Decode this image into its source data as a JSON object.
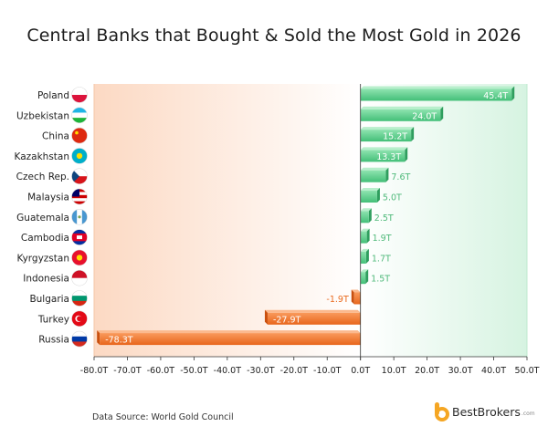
{
  "title": "Central Banks that Bought & Sold the Most Gold in 2026",
  "source": "Data Source: World Gold Council",
  "brand": {
    "name": "BestBrokers",
    "suffix": ".com"
  },
  "colors": {
    "positive": "#5ccf8c",
    "negative": "#f27a2d"
  },
  "chart_data": {
    "type": "bar",
    "orientation": "horizontal",
    "title": "Central Banks that Bought & Sold the Most Gold in 2026",
    "categories": [
      "Poland",
      "Uzbekistan",
      "China",
      "Kazakhstan",
      "Czech Rep.",
      "Malaysia",
      "Guatemala",
      "Cambodia",
      "Kyrgyzstan",
      "Indonesia",
      "Bulgaria",
      "Turkey",
      "Russia"
    ],
    "values": [
      45.4,
      24.0,
      15.2,
      13.3,
      7.6,
      5.0,
      2.5,
      1.9,
      1.7,
      1.5,
      -1.9,
      -27.9,
      -78.3
    ],
    "value_labels": [
      "45.4T",
      "24.0T",
      "15.2T",
      "13.3T",
      "7.6T",
      "5.0T",
      "2.5T",
      "1.9T",
      "1.7T",
      "1.5T",
      "-1.9T",
      "-27.9T",
      "-78.3T"
    ],
    "xlim": [
      -80,
      50
    ],
    "x_ticks": [
      -80,
      -70,
      -60,
      -50,
      -40,
      -30,
      -20,
      -10,
      0,
      10,
      20,
      30,
      40,
      50
    ],
    "x_tick_labels": [
      "-80.0T",
      "-70.0T",
      "-60.0T",
      "-50.0T",
      "-40.0T",
      "-30.0T",
      "-20.0T",
      "-10.0T",
      "0.0T",
      "10.0T",
      "20.0T",
      "30.0T",
      "40.0T",
      "50.0T"
    ],
    "flags": [
      "poland-flag-icon",
      "uzbekistan-flag-icon",
      "china-flag-icon",
      "kazakhstan-flag-icon",
      "czech-flag-icon",
      "malaysia-flag-icon",
      "guatemala-flag-icon",
      "cambodia-flag-icon",
      "kyrgyzstan-flag-icon",
      "indonesia-flag-icon",
      "bulgaria-flag-icon",
      "turkey-flag-icon",
      "russia-flag-icon"
    ],
    "grid": false,
    "legend": "none"
  }
}
